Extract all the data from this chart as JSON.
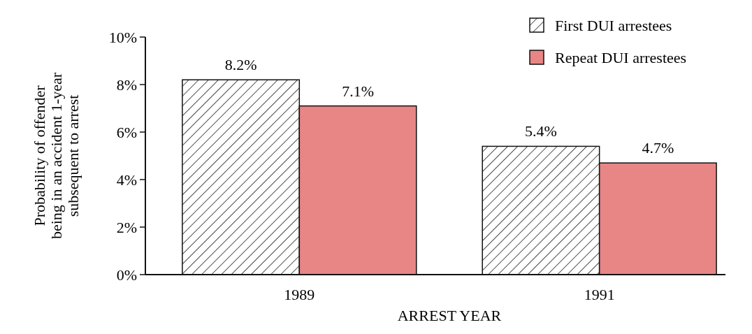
{
  "chart_data": {
    "type": "bar",
    "xlabel": "ARREST YEAR",
    "ylabel": "Probability of offender being in an accident 1-year subsequent to arrest",
    "categories": [
      "1989",
      "1991"
    ],
    "series": [
      {
        "name": "First DUI arrestees",
        "color": "#111111",
        "values": [
          8.2,
          5.4
        ],
        "value_labels": [
          "8.2%",
          "5.4%"
        ]
      },
      {
        "name": "Repeat DUI arrestees",
        "color": "#e88585",
        "values": [
          7.1,
          4.7
        ],
        "value_labels": [
          "7.1%",
          "4.7%"
        ]
      }
    ],
    "ylim": [
      0,
      10
    ],
    "yticks": [
      {
        "value": 0,
        "label": "0%"
      },
      {
        "value": 2,
        "label": "2%"
      },
      {
        "value": 4,
        "label": "4%"
      },
      {
        "value": 6,
        "label": "6%"
      },
      {
        "value": 8,
        "label": "8%"
      },
      {
        "value": 10,
        "label": "10%"
      }
    ],
    "legend": "top right"
  }
}
